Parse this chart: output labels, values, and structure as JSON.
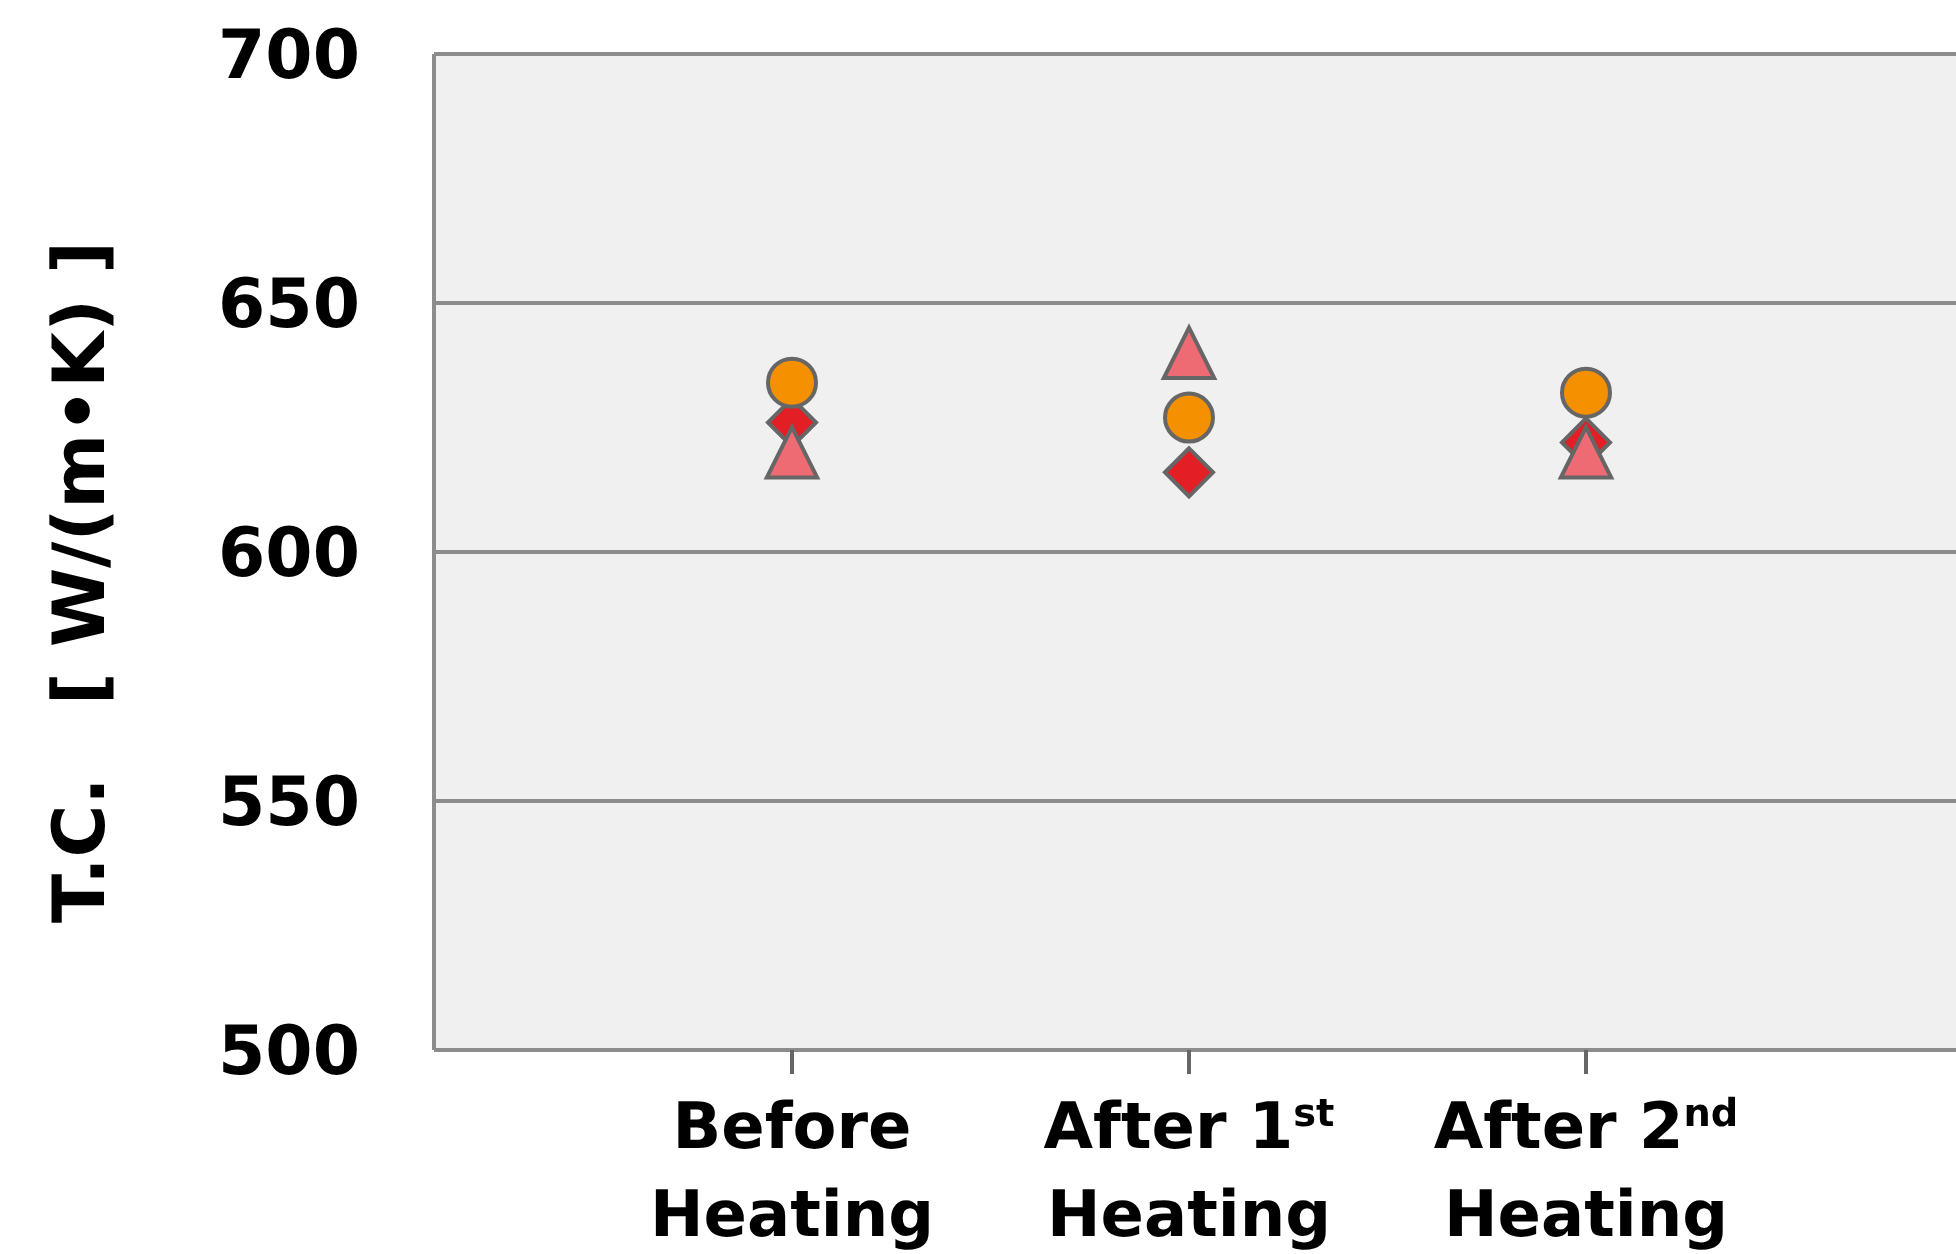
{
  "chart_data": {
    "type": "scatter",
    "ylabel": "T.C.　[ W/(m•K) ]",
    "categories": [
      "Before Heating",
      "After 1$^{st}$ Heating",
      "After 2$^{nd}$ Heating"
    ],
    "series": [
      {
        "color": "#e31e24",
        "marker": "diamond",
        "values": [
          626,
          616,
          622
        ]
      },
      {
        "color": "#f59100",
        "marker": "circle",
        "values": [
          634,
          627,
          632
        ]
      },
      {
        "color": "#ee6b74",
        "marker": "triangle",
        "values": [
          620,
          640,
          620
        ]
      }
    ],
    "ylim": [
      500,
      700
    ],
    "yticks": [
      500,
      550,
      600,
      650,
      700
    ],
    "grid": "y"
  }
}
